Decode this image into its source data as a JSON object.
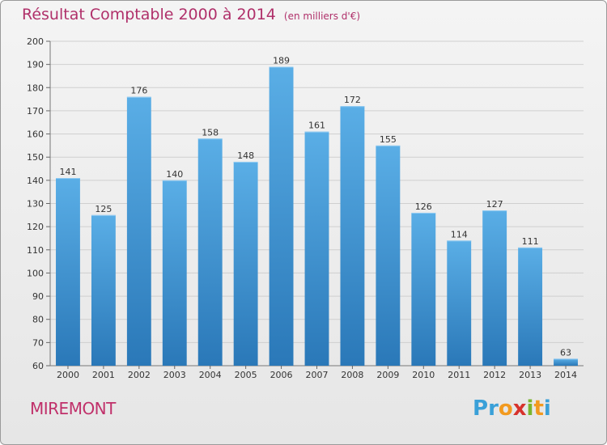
{
  "header": {
    "title": "Résultat Comptable 2000 à 2014",
    "unit": "(en milliers d'€)"
  },
  "footer": {
    "city": "MIREMONT",
    "logo_letters": [
      "P",
      "r",
      "o",
      "x",
      "i",
      "t",
      "i"
    ],
    "logo_colors": [
      "#3aa0d8",
      "#3aa0d8",
      "#f29a1f",
      "#d7322c",
      "#7ab52e",
      "#f29a1f",
      "#3aa0d8"
    ]
  },
  "chart_data": {
    "type": "bar",
    "title": "Résultat Comptable 2000 à 2014",
    "subtitle": "(en milliers d'€)",
    "xlabel": "",
    "ylabel": "",
    "categories": [
      "2000",
      "2001",
      "2002",
      "2003",
      "2004",
      "2005",
      "2006",
      "2007",
      "2008",
      "2009",
      "2010",
      "2011",
      "2012",
      "2013",
      "2014"
    ],
    "values": [
      141,
      125,
      176,
      140,
      158,
      148,
      189,
      161,
      172,
      155,
      126,
      114,
      127,
      111,
      63
    ],
    "ylim": [
      60,
      200
    ],
    "yticks": [
      60,
      70,
      80,
      90,
      100,
      110,
      120,
      130,
      140,
      150,
      160,
      170,
      180,
      190,
      200
    ],
    "grid": true,
    "bar_color_top": "#5aaee6",
    "bar_color_bottom": "#2a78b8"
  }
}
